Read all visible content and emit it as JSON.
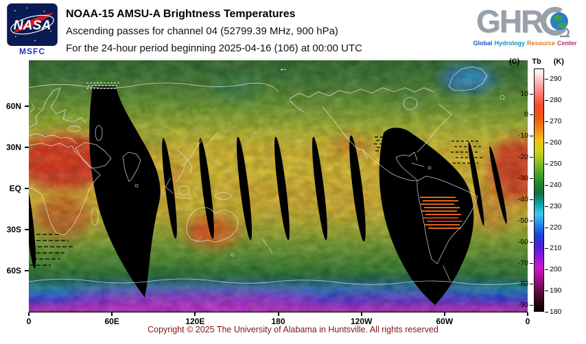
{
  "header": {
    "nasa": {
      "name": "NASA",
      "center": "MSFC"
    },
    "title_line1": "NOAA-15 AMSU-A Brightness Temperatures",
    "title_line2": "Ascending passes for channel 04 (52799.39 MHz, 900 hPa)",
    "title_line3": "For the 24-hour period beginning 2025-04-16 (106) at 00:00 UTC",
    "ghrc": {
      "acronym": "GHRC",
      "acronym_prefix": "GHR",
      "tagline_words": [
        {
          "text": "Global",
          "color": "#2050c8"
        },
        {
          "text": "Hydrology",
          "color": "#1890b0"
        },
        {
          "text": "Resource",
          "color": "#e07820"
        },
        {
          "text": "Center",
          "color": "#b03078"
        }
      ]
    }
  },
  "map": {
    "direction_arrow": "←",
    "lat_ticks": [
      {
        "label": "60N",
        "lat": 60
      },
      {
        "label": "30N",
        "lat": 30
      },
      {
        "label": "EQ",
        "lat": 0
      },
      {
        "label": "30S",
        "lat": -30
      },
      {
        "label": "60S",
        "lat": -60
      }
    ],
    "lon_ticks": [
      {
        "label": "0",
        "deg": 0
      },
      {
        "label": "60E",
        "deg": 60
      },
      {
        "label": "120E",
        "deg": 120
      },
      {
        "label": "180",
        "deg": 180
      },
      {
        "label": "120W",
        "deg": 240
      },
      {
        "label": "60W",
        "deg": 300
      },
      {
        "label": "0",
        "deg": 360
      }
    ]
  },
  "colorbar": {
    "left_unit": "(C)",
    "title": "Tb",
    "right_unit": "(K)",
    "scale_top_k": 295,
    "scale_bottom_k": 180,
    "ticks_k": [
      290,
      280,
      270,
      260,
      250,
      240,
      230,
      220,
      210,
      200,
      190,
      180
    ],
    "ticks_c": [
      10,
      0,
      -10,
      -20,
      -30,
      -40,
      -50,
      -60,
      -70,
      -80,
      -90
    ],
    "stops": [
      {
        "k": 295,
        "color": "#ffffff"
      },
      {
        "k": 290,
        "color": "#ffc2c2"
      },
      {
        "k": 284,
        "color": "#ff8078"
      },
      {
        "k": 278,
        "color": "#f74a2e"
      },
      {
        "k": 272,
        "color": "#e85a12"
      },
      {
        "k": 266,
        "color": "#f28c16"
      },
      {
        "k": 261,
        "color": "#eec414"
      },
      {
        "k": 256,
        "color": "#cdd21c"
      },
      {
        "k": 251,
        "color": "#8ec026"
      },
      {
        "k": 246,
        "color": "#51a628"
      },
      {
        "k": 241,
        "color": "#288628"
      },
      {
        "k": 236,
        "color": "#136e42"
      },
      {
        "k": 231,
        "color": "#0ea2a2"
      },
      {
        "k": 226,
        "color": "#3ecaea"
      },
      {
        "k": 221,
        "color": "#2884ee"
      },
      {
        "k": 216,
        "color": "#1842da"
      },
      {
        "k": 211,
        "color": "#4e1eda"
      },
      {
        "k": 206,
        "color": "#8a18da"
      },
      {
        "k": 201,
        "color": "#ca16d2"
      },
      {
        "k": 196,
        "color": "#aa1092"
      },
      {
        "k": 191,
        "color": "#720e52"
      },
      {
        "k": 186,
        "color": "#3a0820"
      },
      {
        "k": 180,
        "color": "#000000"
      }
    ]
  },
  "footer": {
    "copyright": "Copyright © 2025 The University of Alabama in Huntsville. All rights reserved"
  }
}
